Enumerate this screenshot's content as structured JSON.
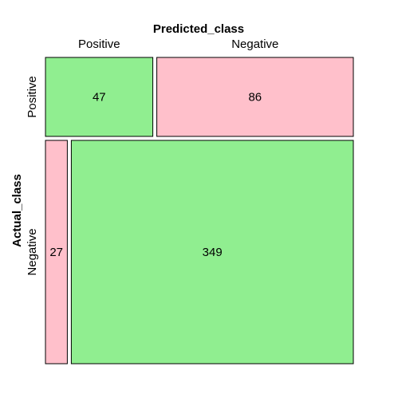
{
  "chart_data": {
    "type": "mosaic",
    "title": "",
    "xlabel": "Predicted_class",
    "ylabel": "Actual_class",
    "x_levels": [
      "Positive",
      "Negative"
    ],
    "y_levels": [
      "Positive",
      "Negative"
    ],
    "cells": [
      {
        "actual": "Positive",
        "predicted": "Positive",
        "value": 47,
        "label": "47",
        "correct": true
      },
      {
        "actual": "Positive",
        "predicted": "Negative",
        "value": 86,
        "label": "86",
        "correct": false
      },
      {
        "actual": "Negative",
        "predicted": "Positive",
        "value": 27,
        "label": "27",
        "correct": false
      },
      {
        "actual": "Negative",
        "predicted": "Negative",
        "value": 349,
        "label": "349",
        "correct": true
      }
    ],
    "colors": {
      "correct": "#90EE90",
      "incorrect": "#FFC0CB",
      "border": "#000000"
    }
  }
}
